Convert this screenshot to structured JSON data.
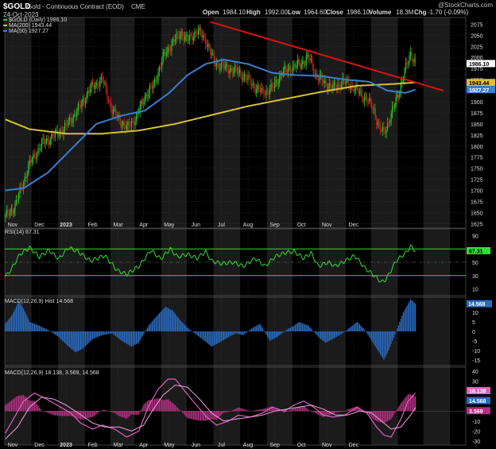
{
  "header": {
    "symbol": "$GOLD",
    "name": "Gold - Continuous Contract (EOD)",
    "exchange": "CME",
    "date": "24-Oct-2023",
    "open_label": "Open",
    "open": "1984.10",
    "high_label": "High",
    "high": "1992.00",
    "low_label": "Low",
    "low": "1964.60",
    "close_label": "Close",
    "close": "1986.10",
    "volume_label": "Volume",
    "volume": "18.3M",
    "chg_label": "Chg",
    "chg": "-1.70 (-0.09%)",
    "watermark": "@StockCharts.com"
  },
  "colors": {
    "background": "#000000",
    "shade": "#1b1b1b",
    "grid": "#3a3a3a",
    "up": "#22cc22",
    "down": "#cc2222",
    "ma200": "#d4c232",
    "ma50": "#3a7fd0",
    "trendline": "#e01010",
    "rsi": "#33dd33",
    "hist": "#2a6abf",
    "macd": "#e060c0",
    "signal": "#f0a0e0"
  },
  "chart_data": [
    {
      "type": "candlestick",
      "panel": "price",
      "legend": [
        {
          "label": "$GOLD (Daily) 1986.10",
          "color": "#22cc22"
        },
        {
          "label": "MA(200) 1943.44",
          "color": "#d4c232"
        },
        {
          "label": "MA(50) 1927.27",
          "color": "#3a7fd0"
        }
      ],
      "x_tick_labels": [
        "Nov",
        "Dec",
        "2023",
        "Feb",
        "Mar",
        "Apr",
        "May",
        "Jun",
        "Jul",
        "Aug",
        "Sep",
        "Oct",
        "Nov",
        "Dec"
      ],
      "y_tick_labels": [
        "1625",
        "1650",
        "1675",
        "1700",
        "1725",
        "1750",
        "1775",
        "1800",
        "1825",
        "1850",
        "1875",
        "1900",
        "1925",
        "1950",
        "1975",
        "2000",
        "2025",
        "2050",
        "2075"
      ],
      "ylim": [
        1615,
        2090
      ],
      "price_anchors": [
        [
          0,
          1640
        ],
        [
          8,
          1665
        ],
        [
          20,
          1760
        ],
        [
          30,
          1805
        ],
        [
          38,
          1820
        ],
        [
          48,
          1838
        ],
        [
          60,
          1882
        ],
        [
          70,
          1930
        ],
        [
          80,
          1950
        ],
        [
          88,
          1880
        ],
        [
          100,
          1840
        ],
        [
          108,
          1865
        ],
        [
          115,
          1912
        ],
        [
          122,
          1935
        ],
        [
          130,
          2000
        ],
        [
          138,
          2035
        ],
        [
          145,
          2055
        ],
        [
          150,
          2038
        ],
        [
          158,
          2060
        ],
        [
          165,
          2040
        ],
        [
          172,
          1990
        ],
        [
          182,
          1975
        ],
        [
          190,
          1970
        ],
        [
          198,
          1955
        ],
        [
          205,
          1935
        ],
        [
          212,
          1920
        ],
        [
          220,
          1930
        ],
        [
          228,
          1965
        ],
        [
          235,
          1975
        ],
        [
          243,
          1985
        ],
        [
          250,
          2000
        ],
        [
          256,
          1960
        ],
        [
          262,
          1945
        ],
        [
          270,
          1930
        ],
        [
          278,
          1945
        ],
        [
          286,
          1935
        ],
        [
          292,
          1920
        ],
        [
          298,
          1905
        ],
        [
          304,
          1880
        ],
        [
          308,
          1840
        ],
        [
          312,
          1830
        ],
        [
          318,
          1870
        ],
        [
          324,
          1920
        ],
        [
          330,
          1975
        ],
        [
          334,
          2010
        ],
        [
          338,
          1986.1
        ]
      ],
      "ma200_anchors": [
        [
          0,
          1860
        ],
        [
          20,
          1838
        ],
        [
          50,
          1828
        ],
        [
          80,
          1828
        ],
        [
          110,
          1835
        ],
        [
          140,
          1850
        ],
        [
          170,
          1870
        ],
        [
          200,
          1890
        ],
        [
          230,
          1906
        ],
        [
          260,
          1922
        ],
        [
          290,
          1936
        ],
        [
          320,
          1940
        ],
        [
          338,
          1943.44
        ]
      ],
      "ma50_anchors": [
        [
          0,
          1700
        ],
        [
          15,
          1705
        ],
        [
          35,
          1740
        ],
        [
          55,
          1795
        ],
        [
          75,
          1850
        ],
        [
          95,
          1868
        ],
        [
          115,
          1880
        ],
        [
          135,
          1920
        ],
        [
          150,
          1960
        ],
        [
          165,
          1985
        ],
        [
          180,
          1995
        ],
        [
          200,
          1985
        ],
        [
          220,
          1965
        ],
        [
          240,
          1960
        ],
        [
          260,
          1958
        ],
        [
          280,
          1950
        ],
        [
          300,
          1945
        ],
        [
          315,
          1925
        ],
        [
          330,
          1920
        ],
        [
          338,
          1927.27
        ]
      ],
      "trendline": [
        [
          169,
          2080
        ],
        [
          361,
          1925
        ]
      ],
      "last_labels": [
        {
          "text": "1986.10",
          "value": 1986.1,
          "bg": "#ffffff",
          "fg": "#000000"
        },
        {
          "text": "1943.44",
          "value": 1943.44,
          "bg": "#d4c232",
          "fg": "#000000"
        },
        {
          "text": "1927.27",
          "value": 1927.27,
          "bg": "#3a7fd0",
          "fg": "#ffffff"
        }
      ]
    },
    {
      "type": "line",
      "panel": "rsi",
      "legend": "RSI(14) 67.31",
      "y_tick_labels": [
        "10",
        "30",
        "50",
        "70",
        "90"
      ],
      "ylim": [
        0,
        100
      ],
      "levels": [
        30,
        70
      ],
      "anchors": [
        [
          0,
          28
        ],
        [
          5,
          40
        ],
        [
          12,
          62
        ],
        [
          20,
          72
        ],
        [
          28,
          58
        ],
        [
          36,
          68
        ],
        [
          44,
          55
        ],
        [
          52,
          72
        ],
        [
          60,
          66
        ],
        [
          70,
          52
        ],
        [
          82,
          60
        ],
        [
          92,
          38
        ],
        [
          100,
          32
        ],
        [
          110,
          44
        ],
        [
          120,
          68
        ],
        [
          128,
          55
        ],
        [
          136,
          70
        ],
        [
          142,
          58
        ],
        [
          150,
          62
        ],
        [
          158,
          56
        ],
        [
          165,
          66
        ],
        [
          170,
          52
        ],
        [
          178,
          48
        ],
        [
          188,
          50
        ],
        [
          196,
          44
        ],
        [
          206,
          56
        ],
        [
          214,
          44
        ],
        [
          222,
          58
        ],
        [
          230,
          64
        ],
        [
          238,
          66
        ],
        [
          246,
          56
        ],
        [
          252,
          64
        ],
        [
          258,
          44
        ],
        [
          266,
          50
        ],
        [
          272,
          44
        ],
        [
          280,
          52
        ],
        [
          288,
          60
        ],
        [
          296,
          42
        ],
        [
          304,
          30
        ],
        [
          310,
          20
        ],
        [
          314,
          25
        ],
        [
          322,
          52
        ],
        [
          330,
          64
        ],
        [
          334,
          74
        ],
        [
          338,
          67.31
        ]
      ],
      "last_label": "67.31"
    },
    {
      "type": "bar",
      "panel": "macd_hist",
      "legend": "MACD(12,26,9) Hist 14.568",
      "y_tick_labels": [
        "-15",
        "-10",
        "-5",
        "0",
        "5",
        "10"
      ],
      "ylim": [
        -18,
        18
      ],
      "anchors": [
        [
          0,
          4
        ],
        [
          6,
          9
        ],
        [
          11,
          16
        ],
        [
          15,
          12
        ],
        [
          20,
          5
        ],
        [
          28,
          3
        ],
        [
          36,
          0.5
        ],
        [
          44,
          -3
        ],
        [
          52,
          -8
        ],
        [
          58,
          -11
        ],
        [
          64,
          -9
        ],
        [
          72,
          -4
        ],
        [
          80,
          -2
        ],
        [
          88,
          -1
        ],
        [
          96,
          -5
        ],
        [
          104,
          -8
        ],
        [
          110,
          -6
        ],
        [
          118,
          3
        ],
        [
          126,
          9
        ],
        [
          132,
          13
        ],
        [
          138,
          11
        ],
        [
          144,
          6
        ],
        [
          150,
          2
        ],
        [
          158,
          -2
        ],
        [
          164,
          -5
        ],
        [
          170,
          -8
        ],
        [
          176,
          -6
        ],
        [
          184,
          -3
        ],
        [
          190,
          -1
        ],
        [
          196,
          -2
        ],
        [
          204,
          2
        ],
        [
          210,
          4
        ],
        [
          218,
          -5
        ],
        [
          224,
          -3
        ],
        [
          232,
          1
        ],
        [
          238,
          3
        ],
        [
          242,
          5
        ],
        [
          250,
          3
        ],
        [
          258,
          -3
        ],
        [
          264,
          -6
        ],
        [
          270,
          -4
        ],
        [
          278,
          -1
        ],
        [
          284,
          2
        ],
        [
          290,
          5
        ],
        [
          296,
          1
        ],
        [
          302,
          -5
        ],
        [
          308,
          -11
        ],
        [
          312,
          -15
        ],
        [
          316,
          -10
        ],
        [
          322,
          0
        ],
        [
          328,
          10
        ],
        [
          334,
          17
        ],
        [
          338,
          14.568
        ]
      ],
      "last_label": "14.568"
    },
    {
      "type": "line",
      "panel": "macd",
      "legend": "MACD(12,26,9) 18.138, 3.569, 14.568",
      "y_tick_labels": [
        "-30",
        "-20",
        "-10",
        "0",
        "10",
        "20",
        "30",
        "40"
      ],
      "ylim": [
        -34,
        44
      ],
      "macd_anchors": [
        [
          0,
          -22
        ],
        [
          8,
          -5
        ],
        [
          15,
          10
        ],
        [
          24,
          18
        ],
        [
          34,
          12
        ],
        [
          44,
          5
        ],
        [
          54,
          -2
        ],
        [
          62,
          -12
        ],
        [
          72,
          -18
        ],
        [
          80,
          -14
        ],
        [
          90,
          -18
        ],
        [
          100,
          -26
        ],
        [
          110,
          -20
        ],
        [
          118,
          5
        ],
        [
          126,
          22
        ],
        [
          134,
          32
        ],
        [
          140,
          32
        ],
        [
          148,
          20
        ],
        [
          156,
          8
        ],
        [
          166,
          -6
        ],
        [
          174,
          -14
        ],
        [
          184,
          -10
        ],
        [
          192,
          -4
        ],
        [
          202,
          -6
        ],
        [
          212,
          -2
        ],
        [
          220,
          4
        ],
        [
          230,
          0
        ],
        [
          238,
          6
        ],
        [
          246,
          10
        ],
        [
          254,
          4
        ],
        [
          262,
          -4
        ],
        [
          270,
          -6
        ],
        [
          280,
          -4
        ],
        [
          290,
          4
        ],
        [
          298,
          -2
        ],
        [
          306,
          -16
        ],
        [
          312,
          -24
        ],
        [
          318,
          -26
        ],
        [
          326,
          -8
        ],
        [
          332,
          10
        ],
        [
          338,
          18.138
        ]
      ],
      "signal_anchors": [
        [
          0,
          -28
        ],
        [
          10,
          -16
        ],
        [
          20,
          4
        ],
        [
          30,
          14
        ],
        [
          40,
          12
        ],
        [
          50,
          6
        ],
        [
          60,
          -2
        ],
        [
          72,
          -12
        ],
        [
          82,
          -16
        ],
        [
          94,
          -16
        ],
        [
          104,
          -20
        ],
        [
          114,
          -14
        ],
        [
          122,
          2
        ],
        [
          130,
          16
        ],
        [
          140,
          26
        ],
        [
          150,
          24
        ],
        [
          160,
          12
        ],
        [
          170,
          -2
        ],
        [
          180,
          -10
        ],
        [
          190,
          -8
        ],
        [
          202,
          -6
        ],
        [
          212,
          -4
        ],
        [
          222,
          0
        ],
        [
          232,
          2
        ],
        [
          242,
          4
        ],
        [
          252,
          6
        ],
        [
          262,
          2
        ],
        [
          272,
          -4
        ],
        [
          282,
          -4
        ],
        [
          292,
          0
        ],
        [
          302,
          -2
        ],
        [
          310,
          -10
        ],
        [
          318,
          -18
        ],
        [
          326,
          -16
        ],
        [
          334,
          -4
        ],
        [
          338,
          3.569
        ]
      ],
      "last_labels": [
        "18.138",
        "14.568",
        "3.569"
      ]
    }
  ]
}
